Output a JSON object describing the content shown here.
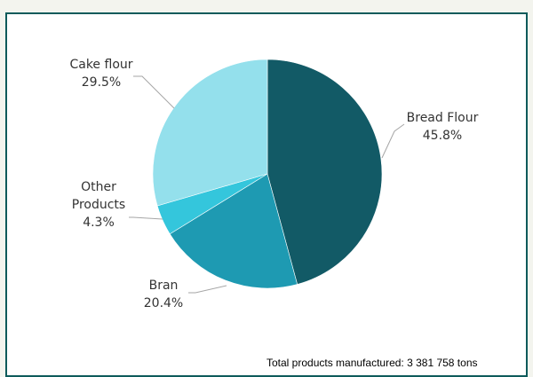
{
  "chart_data": {
    "type": "pie",
    "title": "",
    "slices": [
      {
        "name_lines": [
          "Bread Flour"
        ],
        "value": 45.8,
        "label": "45.8%",
        "color": "#125a66"
      },
      {
        "name_lines": [
          "Bran"
        ],
        "value": 20.4,
        "label": "20.4%",
        "color": "#1e9ab2"
      },
      {
        "name_lines": [
          "Other",
          "Products"
        ],
        "value": 4.3,
        "label": "4.3%",
        "color": "#34c6dc"
      },
      {
        "name_lines": [
          "Cake flour"
        ],
        "value": 29.5,
        "label": "29.5%",
        "color": "#94e0ec"
      }
    ],
    "start": "12 o'clock",
    "direction": "clockwise",
    "legend": "none"
  },
  "footnote": "Total products manufactured: 3 381 758 tons",
  "colors": {
    "frame_border": "#0e5b5b",
    "leader_line": "#a6a6a6",
    "label_text": "#333333"
  }
}
